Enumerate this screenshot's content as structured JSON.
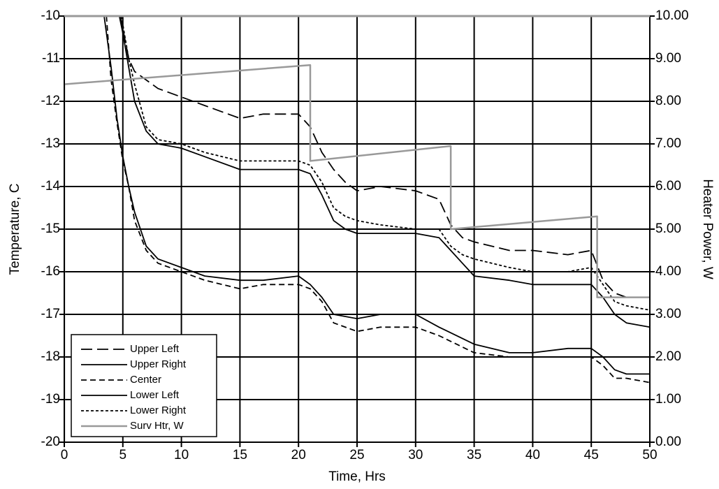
{
  "chart_data": {
    "type": "line",
    "xlabel": "Time, Hrs",
    "ylabel": "Temperature, C",
    "y2label": "Heater Power, W",
    "xlim": [
      0,
      50
    ],
    "xticks": [
      0,
      5,
      10,
      15,
      20,
      25,
      30,
      35,
      40,
      45,
      50
    ],
    "ylim": [
      -20,
      -10
    ],
    "yticks": [
      -20,
      -19,
      -18,
      -17,
      -16,
      -15,
      -14,
      -13,
      -12,
      -11,
      -10
    ],
    "y2lim": [
      0,
      10
    ],
    "y2ticks": [
      {
        "value": 0,
        "label": "0.00"
      },
      {
        "value": 1,
        "label": "1.00"
      },
      {
        "value": 2,
        "label": "2.00"
      },
      {
        "value": 3,
        "label": "3.00"
      },
      {
        "value": 4,
        "label": "4.00"
      },
      {
        "value": 5,
        "label": "5.00"
      },
      {
        "value": 6,
        "label": "6.00"
      },
      {
        "value": 7,
        "label": "7.00"
      },
      {
        "value": 8,
        "label": "8.00"
      },
      {
        "value": 9,
        "label": "9.00"
      },
      {
        "value": 10,
        "label": "10.00"
      }
    ],
    "grid": true,
    "legend": "lower left",
    "series": [
      {
        "name": "Upper Left",
        "color": "#000000",
        "dash": "long",
        "x": [
          4.8,
          5,
          5.5,
          6,
          7,
          8,
          10,
          12,
          15,
          17,
          20,
          21,
          22,
          23,
          24,
          25,
          27,
          30,
          32,
          33,
          34,
          35,
          38,
          40,
          43,
          45,
          46,
          47,
          48,
          50
        ],
        "values": [
          -10,
          -10.3,
          -11,
          -11.3,
          -11.5,
          -11.7,
          -11.9,
          -12.1,
          -12.4,
          -12.3,
          -12.3,
          -12.6,
          -13.2,
          -13.6,
          -13.9,
          -14.1,
          -14.0,
          -14.1,
          -14.3,
          -14.9,
          -15.2,
          -15.3,
          -15.5,
          -15.5,
          -15.6,
          -15.5,
          -16.2,
          -16.5,
          -16.6,
          -16.6
        ]
      },
      {
        "name": "Upper Right",
        "color": "#000000",
        "dash": "solid",
        "x": [
          4.7,
          5,
          5.5,
          6,
          7,
          8,
          10,
          12,
          15,
          17,
          20,
          21,
          22,
          23,
          24,
          25,
          27,
          30,
          32,
          33,
          34,
          35,
          38,
          40,
          43,
          45,
          46,
          47,
          48,
          50
        ],
        "values": [
          -10,
          -10.4,
          -11.2,
          -12,
          -12.7,
          -13,
          -13.1,
          -13.3,
          -13.6,
          -13.6,
          -13.6,
          -13.7,
          -14.2,
          -14.8,
          -15.0,
          -15.1,
          -15.1,
          -15.1,
          -15.2,
          -15.5,
          -15.8,
          -16.1,
          -16.2,
          -16.3,
          -16.3,
          -16.3,
          -16.6,
          -17.0,
          -17.2,
          -17.3
        ]
      },
      {
        "name": "Center",
        "color": "#000000",
        "dash": "short",
        "x": [
          3.6,
          4,
          4.5,
          5,
          5.5,
          6,
          7,
          8,
          10,
          12,
          15,
          17,
          20,
          21,
          22,
          23,
          25,
          27,
          30,
          32,
          35,
          38,
          40,
          43,
          45,
          46,
          47,
          48,
          50
        ],
        "values": [
          -10,
          -11.5,
          -12.5,
          -13.4,
          -14,
          -14.8,
          -15.5,
          -15.8,
          -16.0,
          -16.2,
          -16.4,
          -16.3,
          -16.3,
          -16.4,
          -16.7,
          -17.2,
          -17.4,
          -17.3,
          -17.3,
          -17.5,
          -17.9,
          -18.0,
          -18.0,
          -18.0,
          -18.0,
          -18.2,
          -18.5,
          -18.5,
          -18.6
        ]
      },
      {
        "name": "Lower Left",
        "color": "#000000",
        "dash": "solid",
        "x": [
          3.4,
          4,
          4.5,
          5,
          5.5,
          6,
          7,
          8,
          10,
          12,
          15,
          17,
          20,
          21,
          22,
          23,
          25,
          27,
          30,
          32,
          35,
          38,
          40,
          43,
          45,
          46,
          47,
          48,
          50
        ],
        "values": [
          -10,
          -11.2,
          -12.4,
          -13.3,
          -14,
          -14.6,
          -15.4,
          -15.7,
          -15.9,
          -16.1,
          -16.2,
          -16.2,
          -16.1,
          -16.3,
          -16.6,
          -17.0,
          -17.1,
          -17.0,
          -17.0,
          -17.3,
          -17.7,
          -17.9,
          -17.9,
          -17.8,
          -17.8,
          -18.0,
          -18.3,
          -18.4,
          -18.4
        ]
      },
      {
        "name": "Lower Right",
        "color": "#000000",
        "dash": "dot",
        "x": [
          4.9,
          5,
          5.5,
          6,
          7,
          8,
          10,
          12,
          15,
          17,
          20,
          21,
          22,
          23,
          24,
          25,
          27,
          30,
          32,
          33,
          34,
          35,
          38,
          40,
          43,
          45,
          46,
          47,
          48,
          50
        ],
        "values": [
          -10,
          -10.2,
          -11,
          -11.6,
          -12.6,
          -12.9,
          -13.0,
          -13.2,
          -13.4,
          -13.4,
          -13.4,
          -13.5,
          -13.9,
          -14.5,
          -14.7,
          -14.8,
          -14.9,
          -15.0,
          -15.0,
          -15.4,
          -15.6,
          -15.7,
          -15.9,
          -16.0,
          -16.0,
          -15.9,
          -16.3,
          -16.7,
          -16.8,
          -16.9
        ]
      },
      {
        "name": "Surv Htr, W",
        "color": "#999999",
        "dash": "solid",
        "axis": "y2",
        "x": [
          0,
          0,
          21,
          21,
          33,
          33,
          45.5,
          45.5,
          50
        ],
        "values": [
          0,
          8.4,
          8.85,
          6.6,
          6.95,
          5.0,
          5.3,
          3.4,
          3.4
        ]
      }
    ]
  }
}
